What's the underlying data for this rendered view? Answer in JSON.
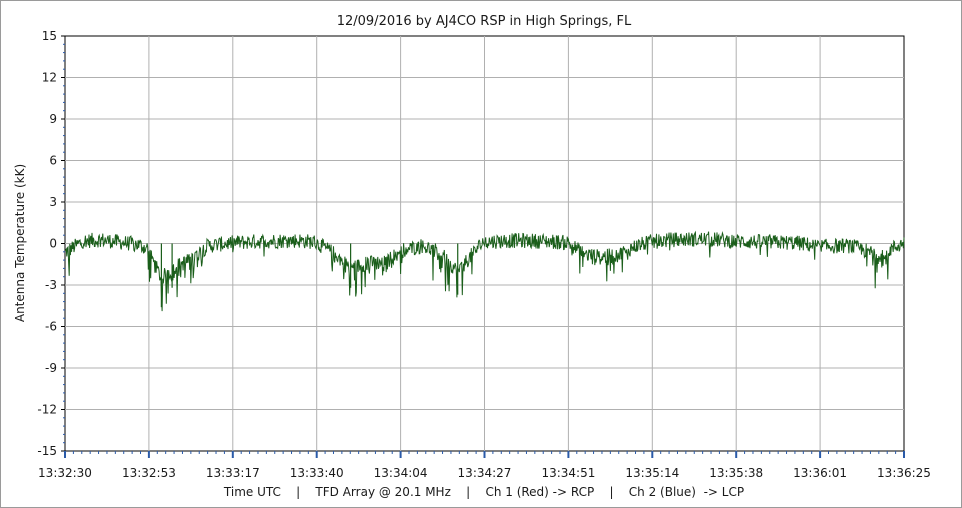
{
  "chart_data": {
    "type": "line",
    "title": "12/09/2016  by  AJ4CO RSP  in  High Springs, FL",
    "ylabel": "Antenna Temperature (kK)",
    "xlabel": "Time UTC    |    TFD Array @ 20.1 MHz    |    Ch 1 (Red) -> RCP    |    Ch 2 (Blue)  -> LCP",
    "ylim": [
      -15,
      15
    ],
    "y_ticks": [
      15,
      12,
      9,
      6,
      3,
      0,
      -3,
      -6,
      -9,
      -12,
      -15
    ],
    "x_tick_labels": [
      "13:32:30",
      "13:32:53",
      "13:33:17",
      "13:33:40",
      "13:34:04",
      "13:34:27",
      "13:34:51",
      "13:35:14",
      "13:35:38",
      "13:36:01",
      "13:36:25"
    ],
    "grid": true,
    "line_color": "#1a5e1a",
    "series": [
      {
        "x": [
          "13:32:30",
          "13:32:35",
          "13:32:40",
          "13:32:45",
          "13:32:50",
          "13:32:53",
          "13:32:57",
          "13:33:00",
          "13:33:05",
          "13:33:10",
          "13:33:17",
          "13:33:25",
          "13:33:35",
          "13:33:40",
          "13:33:45",
          "13:33:50",
          "13:33:55",
          "13:34:00",
          "13:34:04",
          "13:34:10",
          "13:34:15",
          "13:34:20",
          "13:34:27",
          "13:34:35",
          "13:34:45",
          "13:34:51",
          "13:34:55",
          "13:35:00",
          "13:35:05",
          "13:35:10",
          "13:35:14",
          "13:35:20",
          "13:35:30",
          "13:35:38",
          "13:35:45",
          "13:35:55",
          "13:36:01",
          "13:36:10",
          "13:36:18",
          "13:36:25"
        ],
        "y": [
          -1.2,
          0.3,
          0.5,
          0.2,
          -0.1,
          -0.6,
          -4.6,
          -3.2,
          -2.2,
          -0.3,
          0.1,
          0.3,
          0.4,
          0.2,
          -1.2,
          -3.2,
          -2.6,
          -2.4,
          -1.0,
          -0.3,
          -1.2,
          -3.7,
          0.2,
          0.4,
          0.3,
          0.1,
          -1.3,
          -1.8,
          -1.5,
          -0.3,
          0.2,
          0.5,
          0.6,
          0.3,
          0.2,
          0.1,
          -0.4,
          -0.3,
          -1.5,
          0.1
        ]
      }
    ]
  }
}
